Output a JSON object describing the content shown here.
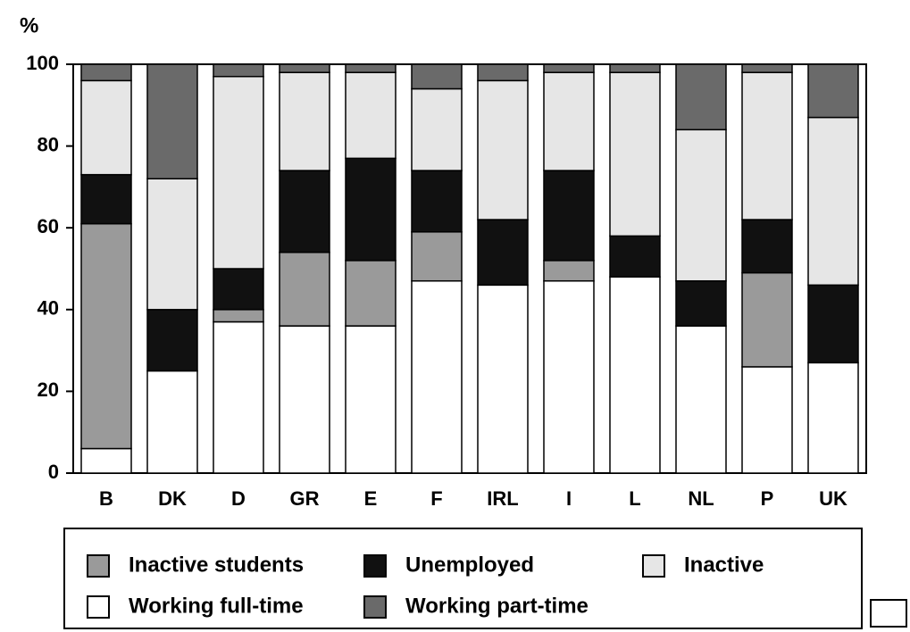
{
  "chart_data": {
    "type": "stacked_bar",
    "y_unit": "%",
    "categories": [
      "B",
      "DK",
      "D",
      "GR",
      "E",
      "F",
      "IRL",
      "I",
      "L",
      "NL",
      "P",
      "UK"
    ],
    "series": [
      {
        "name": "Working full-time",
        "color": "#ffffff",
        "values": [
          6,
          25,
          37,
          36,
          36,
          47,
          46,
          47,
          48,
          36,
          26,
          27
        ]
      },
      {
        "name": "Inactive students",
        "color": "#9a9a9a",
        "values": [
          55,
          0,
          3,
          18,
          16,
          12,
          0,
          5,
          0,
          0,
          23,
          0
        ]
      },
      {
        "name": "Unemployed",
        "color": "#111111",
        "values": [
          12,
          15,
          10,
          20,
          25,
          15,
          16,
          22,
          10,
          11,
          13,
          19
        ]
      },
      {
        "name": "Inactive",
        "color": "#e6e6e6",
        "values": [
          23,
          32,
          47,
          24,
          21,
          20,
          34,
          24,
          40,
          37,
          36,
          41
        ]
      },
      {
        "name": "Working part-time",
        "color": "#6a6a6a",
        "values": [
          4,
          28,
          3,
          2,
          2,
          6,
          4,
          2,
          2,
          16,
          2,
          13
        ]
      }
    ],
    "ylim": [
      0,
      100
    ],
    "yticks": [
      0,
      20,
      40,
      60,
      80,
      100
    ]
  }
}
